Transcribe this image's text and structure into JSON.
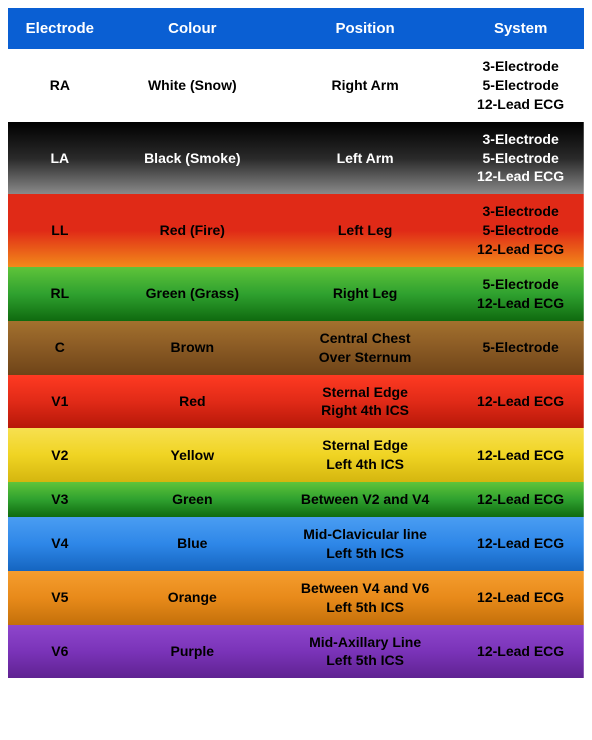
{
  "header": {
    "background": "#0a5fd3",
    "text_color": "#ffffff",
    "columns": [
      "Electrode",
      "Colour",
      "Position",
      "System"
    ]
  },
  "col_widths": [
    "18%",
    "28%",
    "32%",
    "22%"
  ],
  "rows": [
    {
      "electrode": "RA",
      "colour": "White (Snow)",
      "position": [
        "Right Arm"
      ],
      "system": [
        "3-Electrode",
        "5-Electrode",
        "12-Lead ECG"
      ],
      "bg": "#ffffff",
      "text": "#000000",
      "gradient": null
    },
    {
      "electrode": "LA",
      "colour": "Black (Smoke)",
      "position": [
        "Left Arm"
      ],
      "system": [
        "3-Electrode",
        "5-Electrode",
        "12-Lead ECG"
      ],
      "bg": "#000000",
      "text": "#ffffff",
      "gradient": [
        "#000000",
        "#2a2a2a",
        "#8d8d8d"
      ]
    },
    {
      "electrode": "LL",
      "colour": "Red (Fire)",
      "position": [
        "Left Leg"
      ],
      "system": [
        "3-Electrode",
        "5-Electrode",
        "12-Lead ECG"
      ],
      "bg": "#e02a17",
      "text": "#000000",
      "gradient": [
        "#e02a17",
        "#e02a17",
        "#f28a1a"
      ]
    },
    {
      "electrode": "RL",
      "colour": "Green (Grass)",
      "position": [
        "Right Leg"
      ],
      "system": [
        "5-Electrode",
        "12-Lead ECG"
      ],
      "bg": "#2fa12f",
      "text": "#000000",
      "gradient": [
        "#5fc43a",
        "#2fa12f",
        "#0f6a0f"
      ]
    },
    {
      "electrode": "C",
      "colour": "Brown",
      "position": [
        "Central Chest",
        "Over Sternum"
      ],
      "system": [
        "5-Electrode"
      ],
      "bg": "#8a5a24",
      "text": "#000000",
      "gradient": [
        "#a3712e",
        "#8a5a24",
        "#6e4418"
      ]
    },
    {
      "electrode": "V1",
      "colour": "Red",
      "position": [
        "Sternal Edge",
        "Right 4th ICS"
      ],
      "system": [
        "12-Lead ECG"
      ],
      "bg": "#e02a17",
      "text": "#000000",
      "gradient": [
        "#ff3a22",
        "#e02a17",
        "#b51708"
      ]
    },
    {
      "electrode": "V2",
      "colour": "Yellow",
      "position": [
        "Sternal Edge",
        "Left 4th ICS"
      ],
      "system": [
        "12-Lead ECG"
      ],
      "bg": "#f0d423",
      "text": "#000000",
      "gradient": [
        "#f7e050",
        "#f0d423",
        "#d4b60f"
      ]
    },
    {
      "electrode": "V3",
      "colour": "Green",
      "position": [
        "Between V2 and V4"
      ],
      "system": [
        "12-Lead ECG"
      ],
      "bg": "#2fa12f",
      "text": "#000000",
      "gradient": [
        "#5fc43a",
        "#2fa12f",
        "#0f6a0f"
      ]
    },
    {
      "electrode": "V4",
      "colour": "Blue",
      "position": [
        "Mid-Clavicular line",
        "Left 5th ICS"
      ],
      "system": [
        "12-Lead ECG"
      ],
      "bg": "#2e87e8",
      "text": "#000000",
      "gradient": [
        "#4a9df2",
        "#2e87e8",
        "#1565c0"
      ]
    },
    {
      "electrode": "V5",
      "colour": "Orange",
      "position": [
        "Between V4 and V6",
        "Left 5th ICS"
      ],
      "system": [
        "12-Lead ECG"
      ],
      "bg": "#e88a1a",
      "text": "#000000",
      "gradient": [
        "#f59d2e",
        "#e88a1a",
        "#c4700a"
      ]
    },
    {
      "electrode": "V6",
      "colour": "Purple",
      "position": [
        "Mid-Axillary Line",
        "Left 5th ICS"
      ],
      "system": [
        "12-Lead ECG"
      ],
      "bg": "#7a33b8",
      "text": "#000000",
      "gradient": [
        "#8e46cc",
        "#7a33b8",
        "#5e2290"
      ]
    }
  ]
}
